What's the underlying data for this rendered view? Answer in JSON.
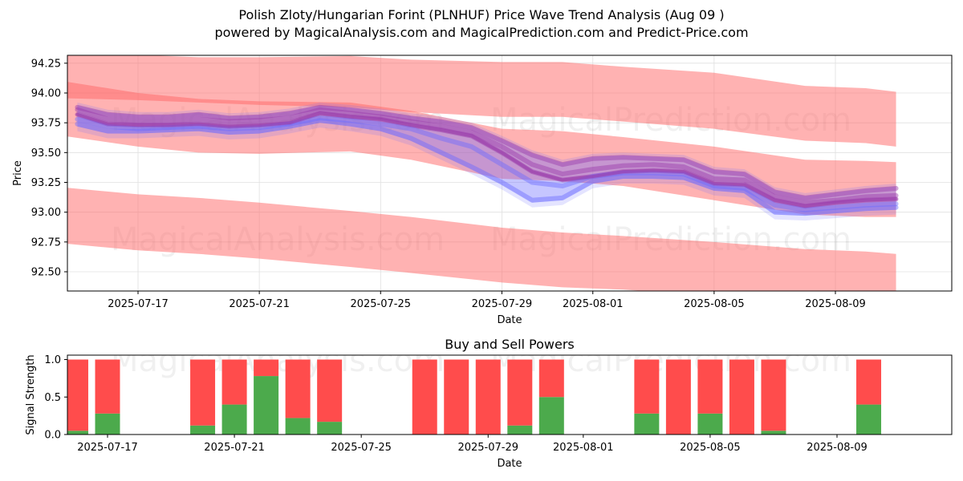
{
  "title_line1": "Polish Zloty/Hungarian Forint (PLNHUF) Price Wave Trend Analysis (Aug 09 )",
  "title_line2": "powered by MagicalAnalysis.com and MagicalPrediction.com and Predict-Price.com",
  "watermarks": [
    "MagicalAnalysis.com",
    "MagicalPrediction.com"
  ],
  "colors": {
    "band": "#ff6666",
    "wave_blue": "#6a6aff",
    "wave_purple": "#9a3aaa",
    "buy": "#4caa4c",
    "sell": "#ff4c4c"
  },
  "chart_data": [
    {
      "type": "line",
      "title": "",
      "xlabel": "Date",
      "ylabel": "Price",
      "x_ticks": [
        "2025-07-17",
        "2025-07-21",
        "2025-07-25",
        "2025-07-29",
        "2025-08-01",
        "2025-08-05",
        "2025-08-09"
      ],
      "y_ticks": [
        "92.50",
        "92.75",
        "93.00",
        "93.25",
        "93.50",
        "93.75",
        "94.00",
        "94.25"
      ],
      "ylim": [
        92.34,
        94.31
      ],
      "grid": true,
      "bands": [
        {
          "name": "upper",
          "upper": [
            94.34,
            94.32,
            94.3,
            94.3,
            94.31,
            94.28,
            94.26,
            94.26,
            94.22,
            94.17,
            94.06,
            94.04,
            94.01
          ],
          "lower": [
            93.96,
            93.94,
            93.92,
            93.9,
            93.88,
            93.84,
            93.8,
            93.8,
            93.76,
            93.7,
            93.6,
            93.58,
            93.55
          ]
        },
        {
          "name": "middle",
          "upper": [
            94.12,
            94.0,
            93.95,
            93.93,
            93.92,
            93.85,
            93.7,
            93.68,
            93.63,
            93.55,
            93.44,
            93.43,
            93.42
          ],
          "lower": [
            93.66,
            93.55,
            93.5,
            93.49,
            93.51,
            93.44,
            93.28,
            93.26,
            93.22,
            93.1,
            92.98,
            92.96,
            92.96
          ]
        },
        {
          "name": "lower",
          "upper": [
            93.22,
            93.15,
            93.12,
            93.08,
            93.01,
            92.96,
            92.87,
            92.83,
            92.8,
            92.75,
            92.69,
            92.67,
            92.65
          ],
          "lower": [
            92.75,
            92.68,
            92.65,
            92.61,
            92.54,
            92.49,
            92.41,
            92.37,
            92.35,
            92.3,
            92.25,
            92.22,
            92.2
          ]
        }
      ],
      "band_x": [
        "2025-07-14",
        "2025-07-17",
        "2025-07-19",
        "2025-07-21",
        "2025-07-24",
        "2025-07-26",
        "2025-07-29",
        "2025-07-31",
        "2025-08-02",
        "2025-08-05",
        "2025-08-08",
        "2025-08-10",
        "2025-08-11"
      ],
      "wave_x": [
        "2025-07-15",
        "2025-07-16",
        "2025-07-17",
        "2025-07-18",
        "2025-07-19",
        "2025-07-20",
        "2025-07-21",
        "2025-07-22",
        "2025-07-23",
        "2025-07-24",
        "2025-07-25",
        "2025-07-26",
        "2025-07-27",
        "2025-07-28",
        "2025-07-29",
        "2025-07-30",
        "2025-07-31",
        "2025-08-01",
        "2025-08-02",
        "2025-08-03",
        "2025-08-04",
        "2025-08-05",
        "2025-08-06",
        "2025-08-07",
        "2025-08-08",
        "2025-08-09",
        "2025-08-10",
        "2025-08-11"
      ],
      "wave_series": [
        {
          "values": [
            93.82,
            93.74,
            93.73,
            93.73,
            93.74,
            93.72,
            93.73,
            93.75,
            93.83,
            93.8,
            93.78,
            93.73,
            93.69,
            93.64,
            93.5,
            93.34,
            93.27,
            93.3,
            93.34,
            93.35,
            93.34,
            93.24,
            93.23,
            93.1,
            93.05,
            93.08,
            93.1,
            93.11
          ]
        },
        {
          "values": [
            93.78,
            93.72,
            93.7,
            93.71,
            93.72,
            93.7,
            93.71,
            93.74,
            93.79,
            93.77,
            93.74,
            93.7,
            93.62,
            93.55,
            93.4,
            93.25,
            93.22,
            93.3,
            93.33,
            93.33,
            93.32,
            93.22,
            93.2,
            93.06,
            93.02,
            93.04,
            93.06,
            93.07
          ]
        },
        {
          "values": [
            93.86,
            93.78,
            93.76,
            93.76,
            93.78,
            93.76,
            93.77,
            93.79,
            93.86,
            93.83,
            93.8,
            93.76,
            93.72,
            93.67,
            93.55,
            93.4,
            93.32,
            93.36,
            93.39,
            93.4,
            93.38,
            93.28,
            93.27,
            93.13,
            93.08,
            93.1,
            93.13,
            93.14
          ]
        },
        {
          "values": [
            93.74,
            93.68,
            93.68,
            93.69,
            93.7,
            93.67,
            93.68,
            93.72,
            93.77,
            93.74,
            93.7,
            93.62,
            93.5,
            93.38,
            93.25,
            93.1,
            93.12,
            93.26,
            93.3,
            93.3,
            93.29,
            93.2,
            93.18,
            93.0,
            92.99,
            93.01,
            93.03,
            93.04
          ]
        },
        {
          "values": [
            93.88,
            93.82,
            93.8,
            93.8,
            93.82,
            93.79,
            93.8,
            93.83,
            93.88,
            93.86,
            93.83,
            93.79,
            93.76,
            93.71,
            93.6,
            93.48,
            93.4,
            93.45,
            93.46,
            93.45,
            93.44,
            93.34,
            93.32,
            93.17,
            93.12,
            93.15,
            93.18,
            93.2
          ]
        }
      ]
    },
    {
      "type": "bar",
      "title": "Buy and Sell Powers",
      "xlabel": "Date",
      "ylabel": "Signal Strength",
      "ylim": [
        0,
        1.05
      ],
      "y_ticks": [
        "0.0",
        "0.5",
        "1.0"
      ],
      "x_ticks": [
        "2025-07-17",
        "2025-07-21",
        "2025-07-25",
        "2025-07-29",
        "2025-08-01",
        "2025-08-05",
        "2025-08-09"
      ],
      "categories": [
        "2025-07-16",
        "2025-07-17",
        "2025-07-20",
        "2025-07-21",
        "2025-07-22",
        "2025-07-23",
        "2025-07-24",
        "2025-07-27",
        "2025-07-28",
        "2025-07-29",
        "2025-07-30",
        "2025-07-31",
        "2025-08-03",
        "2025-08-04",
        "2025-08-05",
        "2025-08-06",
        "2025-08-07",
        "2025-08-10"
      ],
      "series": [
        {
          "name": "buy",
          "values": [
            0.05,
            0.28,
            0.12,
            0.4,
            0.78,
            0.22,
            0.17,
            0.0,
            0.0,
            0.0,
            0.12,
            0.5,
            0.28,
            0.0,
            0.28,
            0.0,
            0.05,
            0.4
          ]
        },
        {
          "name": "sell",
          "values": [
            0.95,
            0.72,
            0.88,
            0.6,
            0.22,
            0.78,
            0.83,
            1.0,
            1.0,
            1.0,
            0.88,
            0.5,
            0.72,
            1.0,
            0.72,
            1.0,
            0.95,
            0.6
          ]
        }
      ]
    }
  ]
}
